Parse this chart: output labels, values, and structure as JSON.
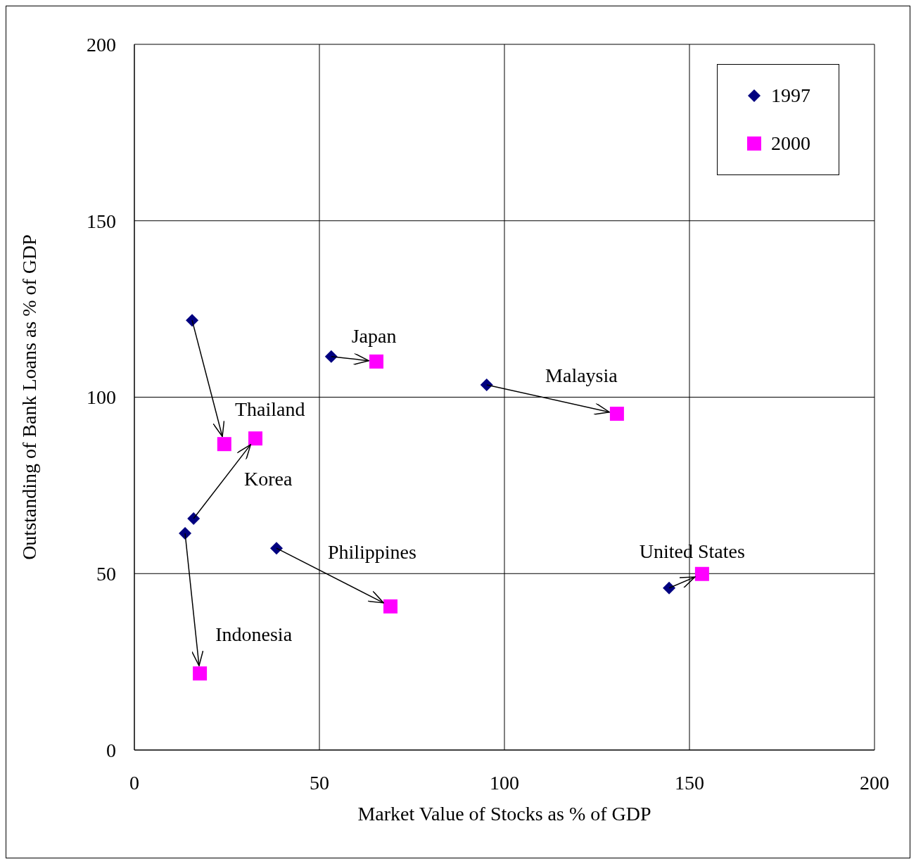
{
  "chart_data": {
    "type": "scatter",
    "xlabel": "Market Value of Stocks as % of GDP",
    "ylabel": "Outstanding of Bank Loans as % of GDP",
    "xlim": [
      0,
      200
    ],
    "xticks": [
      0,
      50,
      100,
      150,
      200
    ],
    "ylim": [
      0,
      200
    ],
    "yticks": [
      0,
      50,
      100,
      150,
      200
    ],
    "grid": true,
    "legend": "top right",
    "series": [
      {
        "name": "1997",
        "color": "#000080",
        "marker": "diamond",
        "x": [
          15.6,
          16.0,
          13.7,
          38.4,
          53.2,
          95.2,
          144.5
        ],
        "values": [
          121.8,
          65.6,
          61.4,
          57.2,
          111.5,
          103.5,
          45.9
        ]
      },
      {
        "name": "2000",
        "color": "#ff00ff",
        "marker": "square",
        "x": [
          24.3,
          32.7,
          17.7,
          69.2,
          65.4,
          130.4,
          153.4
        ],
        "values": [
          86.7,
          88.3,
          21.7,
          40.7,
          110.1,
          95.3,
          49.9
        ]
      }
    ],
    "annotations": [
      {
        "text": "Thailand",
        "x": 24.3,
        "y": 86.7
      },
      {
        "text": "Korea",
        "x": 32.7,
        "y": 88.3
      },
      {
        "text": "Indonesia",
        "x": 17.7,
        "y": 21.7
      },
      {
        "text": "Philippines",
        "x": 69.2,
        "y": 40.7
      },
      {
        "text": "Japan",
        "x": 65.4,
        "y": 110.1
      },
      {
        "text": "Malaysia",
        "x": 130.4,
        "y": 95.3
      },
      {
        "text": "United States",
        "x": 153.4,
        "y": 49.9
      }
    ]
  }
}
